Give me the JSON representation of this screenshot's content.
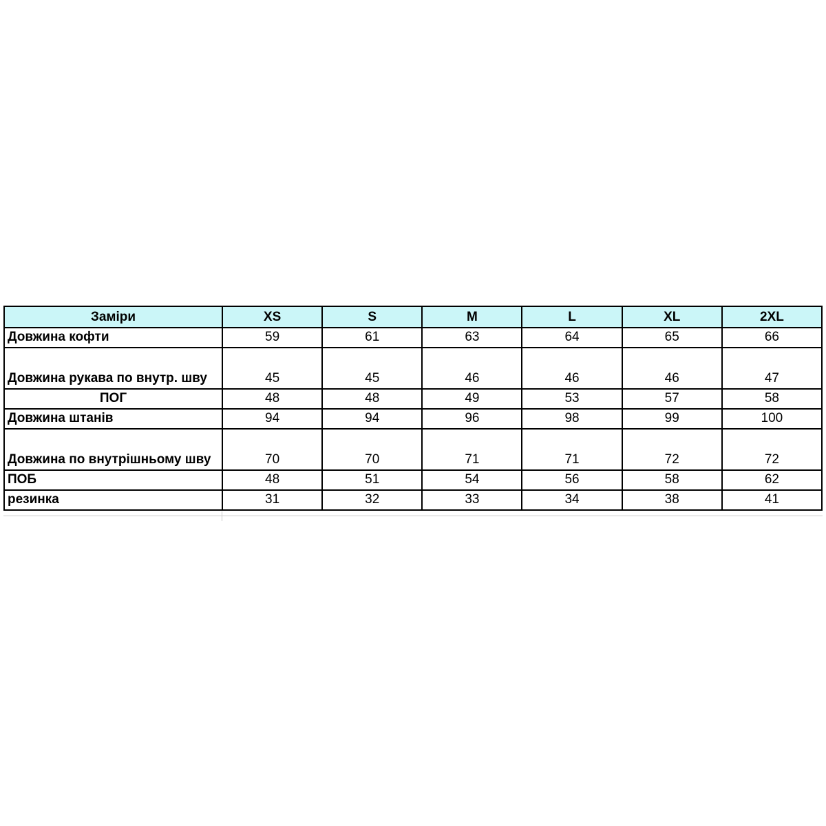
{
  "table": {
    "title_semantic": "size-chart",
    "header_bg_color": "#cbf6f8",
    "border_color": "#000000",
    "header": [
      "Заміри",
      "XS",
      "S",
      "M",
      "L",
      "XL",
      "2XL"
    ],
    "rows": [
      {
        "label": "Довжина кофти",
        "values": [
          59,
          61,
          63,
          64,
          65,
          66
        ]
      },
      {
        "label": "Довжина рукава по внутр. шву",
        "values": [
          45,
          45,
          46,
          46,
          46,
          47
        ]
      },
      {
        "label": "ПОГ",
        "values": [
          48,
          48,
          49,
          53,
          57,
          58
        ]
      },
      {
        "label": "Довжина штанів",
        "values": [
          94,
          94,
          96,
          98,
          99,
          100
        ]
      },
      {
        "label": "Довжина по внутрішньому шву",
        "values": [
          70,
          70,
          71,
          71,
          72,
          72
        ]
      },
      {
        "label": "ПОБ",
        "values": [
          48,
          51,
          54,
          56,
          58,
          62
        ]
      },
      {
        "label": "резинка",
        "values": [
          31,
          32,
          33,
          34,
          38,
          41
        ]
      }
    ]
  }
}
